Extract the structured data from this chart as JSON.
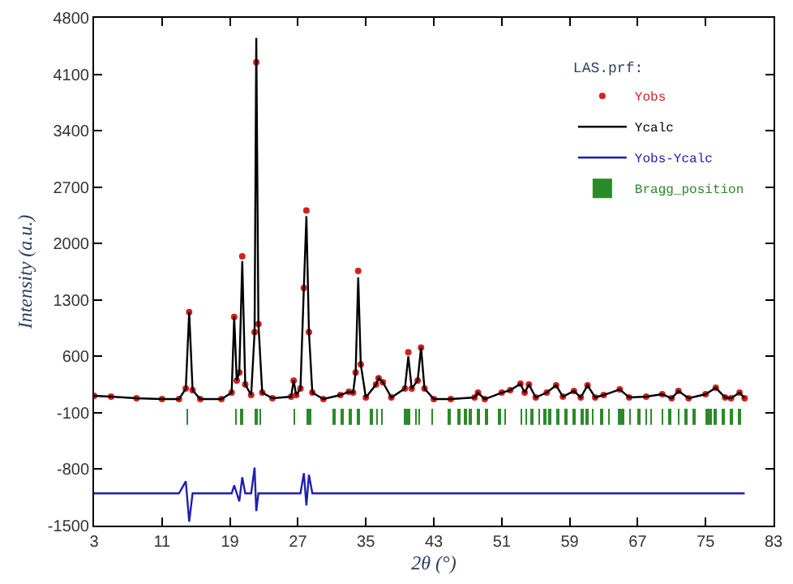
{
  "chart_data": {
    "type": "line",
    "xlabel": "2θ (°)",
    "ylabel": "Intensity (a.u.)",
    "legend_title": "LAS.prf:",
    "x": [
      3,
      5,
      8,
      11,
      13,
      13.8,
      14.2,
      14.6,
      15.5,
      18,
      19.2,
      19.5,
      19.8,
      20.1,
      20.45,
      20.8,
      21.5,
      21.9,
      22.1,
      22.35,
      22.8,
      24,
      26.2,
      26.5,
      26.8,
      27.3,
      27.7,
      28.0,
      28.3,
      28.7,
      30,
      32,
      33,
      33.5,
      33.8,
      34.1,
      34.4,
      35,
      36.2,
      36.5,
      37,
      38,
      39.6,
      40.0,
      40.4,
      41.1,
      41.5,
      41.9,
      43,
      45,
      47.8,
      48.2,
      49,
      51,
      52,
      53.2,
      53.7,
      54.2,
      55,
      56.3,
      57.4,
      58.2,
      59.5,
      60.3,
      61.1,
      62,
      63,
      64.9,
      66,
      68,
      69.9,
      71,
      71.8,
      73,
      75,
      76.2,
      77.3,
      78,
      79,
      79.6
    ],
    "series": [
      {
        "name": "Yobs",
        "type": "scatter",
        "marker": "circle",
        "color": "#d42020",
        "values": [
          110,
          100,
          80,
          70,
          70,
          200,
          1150,
          180,
          70,
          70,
          150,
          1090,
          300,
          400,
          1840,
          250,
          120,
          900,
          4250,
          1000,
          150,
          80,
          100,
          300,
          120,
          200,
          1450,
          2410,
          900,
          150,
          70,
          120,
          160,
          150,
          400,
          1660,
          500,
          90,
          250,
          330,
          280,
          90,
          200,
          650,
          200,
          300,
          710,
          200,
          70,
          70,
          90,
          150,
          70,
          150,
          180,
          260,
          150,
          250,
          90,
          150,
          240,
          100,
          170,
          90,
          240,
          90,
          120,
          190,
          90,
          100,
          130,
          80,
          170,
          80,
          130,
          210,
          90,
          80,
          150,
          80
        ]
      },
      {
        "name": "Ycalc",
        "color": "#000000",
        "values": [
          110,
          100,
          80,
          70,
          70,
          200,
          1150,
          180,
          70,
          70,
          150,
          1090,
          300,
          400,
          1780,
          250,
          120,
          900,
          4550,
          1000,
          150,
          80,
          100,
          300,
          120,
          200,
          1450,
          2340,
          900,
          150,
          70,
          120,
          160,
          150,
          400,
          1580,
          500,
          90,
          250,
          330,
          280,
          90,
          200,
          600,
          200,
          300,
          710,
          200,
          70,
          70,
          90,
          150,
          70,
          150,
          180,
          260,
          150,
          250,
          90,
          150,
          240,
          100,
          170,
          90,
          240,
          90,
          120,
          190,
          90,
          100,
          130,
          80,
          170,
          80,
          130,
          210,
          90,
          80,
          150,
          80
        ]
      },
      {
        "name": "Yobs-Ycalc",
        "color": "#2020b0",
        "values": [
          -1100,
          -1100,
          -1100,
          -1100,
          -1100,
          -950,
          -1450,
          -1100,
          -1100,
          -1100,
          -1100,
          -1000,
          -1100,
          -1200,
          -900,
          -1100,
          -1100,
          -780,
          -1320,
          -1100,
          -1100,
          -1100,
          -1100,
          -1100,
          -1100,
          -1100,
          -850,
          -1250,
          -870,
          -1100,
          -1100,
          -1100,
          -1100,
          -1100,
          -1100,
          -1100,
          -1100,
          -1100,
          -1100,
          -1100,
          -1100,
          -1100,
          -1100,
          -1100,
          -1100,
          -1100,
          -1100,
          -1100,
          -1100,
          -1100,
          -1100,
          -1100,
          -1100,
          -1100,
          -1100,
          -1100,
          -1100,
          -1100,
          -1100,
          -1100,
          -1100,
          -1100,
          -1100,
          -1100,
          -1100,
          -1100,
          -1100,
          -1100,
          -1100,
          -1100,
          -1100,
          -1100,
          -1100,
          -1100,
          -1100,
          -1100,
          -1100,
          -1100,
          -1100,
          -1100
        ]
      },
      {
        "name": "Bragg_position",
        "type": "bar",
        "color": "#2a8a2a",
        "base": [
          -250,
          -250,
          -250,
          -250,
          -250,
          -250,
          -250,
          -250,
          -250,
          -250,
          -250,
          -250,
          -250,
          -250,
          -250,
          -250,
          -250,
          -250,
          -250,
          -250,
          -250,
          -250,
          -250,
          -250,
          -250,
          -250,
          -250,
          -250,
          -250,
          -250,
          -250,
          -250,
          -250,
          -250,
          -250,
          -250,
          -250,
          -250,
          -250,
          -250,
          -250,
          -250,
          -250,
          -250,
          -250,
          -250,
          -250,
          -250,
          -250,
          -250,
          -250,
          -250,
          -250,
          -250,
          -250,
          -250,
          -250,
          -250,
          -250
        ],
        "x": [
          14.0,
          19.7,
          20.4,
          22.1,
          22.6,
          26.6,
          28.2,
          28.5,
          31.3,
          32.2,
          33.2,
          34.1,
          35.7,
          36.3,
          36.9,
          39.6,
          40.1,
          40.9,
          41.3,
          42.8,
          44.8,
          46.0,
          46.7,
          47.3,
          48.2,
          49.2,
          50.7,
          51.4,
          53.3,
          53.9,
          54.5,
          55.4,
          56.1,
          56.7,
          57.6,
          58.6,
          59.5,
          60.5,
          61.1,
          61.7,
          62.7,
          63.6,
          64.9,
          65.2,
          66.1,
          67.1,
          68.0,
          68.6,
          69.9,
          70.8,
          71.8,
          72.7,
          73.6,
          75.2,
          75.5,
          76.1,
          77.1,
          78.0,
          79.0
        ],
        "values": [
          200,
          200,
          200,
          200,
          200,
          200,
          200,
          200,
          200,
          200,
          200,
          200,
          200,
          200,
          200,
          200,
          200,
          200,
          200,
          200,
          200,
          200,
          200,
          200,
          200,
          200,
          200,
          200,
          200,
          200,
          200,
          200,
          200,
          200,
          200,
          200,
          200,
          200,
          200,
          200,
          200,
          200,
          200,
          200,
          200,
          200,
          200,
          200,
          200,
          200,
          200,
          200,
          200,
          200,
          200,
          200,
          200,
          200,
          200
        ]
      }
    ],
    "xlim": [
      3,
      83
    ],
    "xticks": [
      3,
      11,
      19,
      27,
      35,
      43,
      51,
      59,
      67,
      75,
      83
    ],
    "ylim": [
      -1500,
      4800
    ],
    "yticks": [
      -1500,
      -800,
      -100,
      600,
      1300,
      2000,
      2700,
      3400,
      4100,
      4800
    ],
    "legend": "top right"
  }
}
